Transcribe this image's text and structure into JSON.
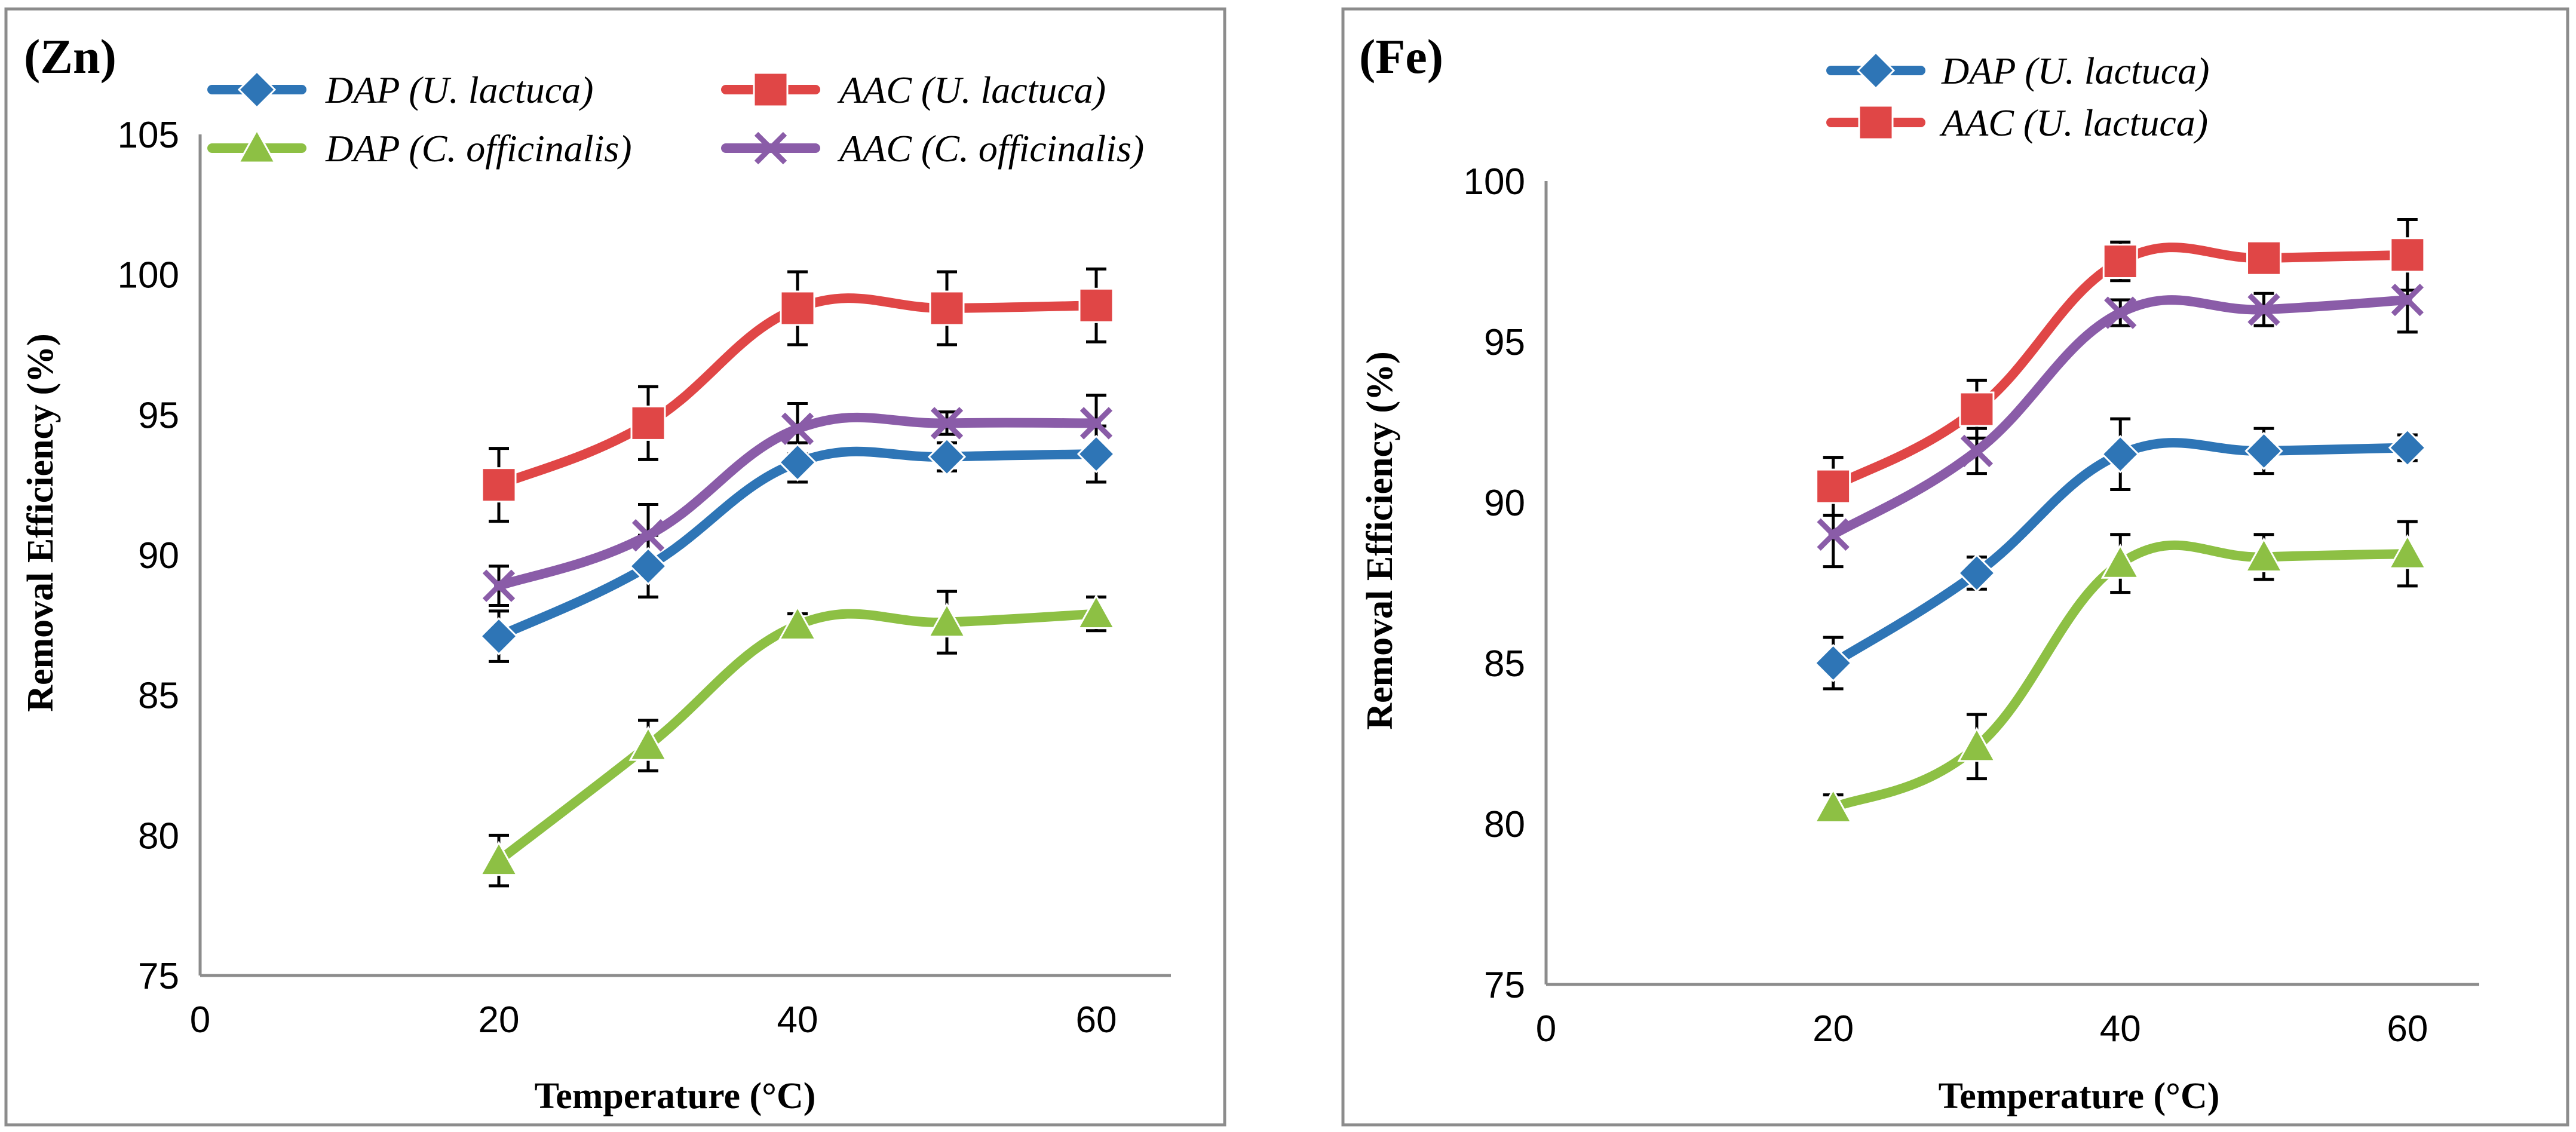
{
  "chart_data": [
    {
      "type": "line",
      "panel_label": "(Zn)",
      "xlabel": "Temperature (°C)",
      "ylabel": "Removal  Efficiency (%)",
      "xlim": [
        0,
        65
      ],
      "ylim": [
        75,
        105
      ],
      "xticks": [
        0,
        20,
        40,
        60
      ],
      "yticks": [
        75,
        80,
        85,
        90,
        95,
        100,
        105
      ],
      "grid": false,
      "legend_position": "top",
      "x": [
        20,
        30,
        40,
        50,
        60
      ],
      "series": [
        {
          "name": "DAP (U. lactuca)",
          "marker": "diamond",
          "color": "#2E75B6",
          "values": [
            87.1,
            89.6,
            93.3,
            93.5,
            93.6
          ],
          "errors": [
            0.9,
            1.1,
            0.7,
            0.5,
            1.0
          ]
        },
        {
          "name": "AAC (U. lactuca)",
          "marker": "square",
          "color": "#E04646",
          "values": [
            92.5,
            94.7,
            98.8,
            98.8,
            98.9
          ],
          "errors": [
            1.3,
            1.3,
            1.3,
            1.3,
            1.3
          ]
        },
        {
          "name": "DAP (C. officinalis)",
          "marker": "triangle",
          "color": "#8DC044",
          "values": [
            79.1,
            83.2,
            87.5,
            87.6,
            87.9
          ],
          "errors": [
            0.9,
            0.9,
            0.4,
            1.1,
            0.6
          ]
        },
        {
          "name": "AAC (C. officinalis)",
          "marker": "x",
          "color": "#8A5CA8",
          "values": [
            88.9,
            90.7,
            94.5,
            94.7,
            94.7
          ],
          "errors": [
            0.7,
            1.1,
            0.9,
            0.4,
            1.0
          ]
        }
      ]
    },
    {
      "type": "line",
      "panel_label": "(Fe)",
      "xlabel": "Temperature (°C)",
      "ylabel": "Removal  Efficiency (%)",
      "xlim": [
        0,
        65
      ],
      "ylim": [
        75,
        100
      ],
      "xticks": [
        0,
        20,
        40,
        60
      ],
      "yticks": [
        75,
        80,
        85,
        90,
        95,
        100
      ],
      "grid": false,
      "legend_position": "top",
      "x": [
        20,
        30,
        40,
        50,
        60
      ],
      "series": [
        {
          "name": "DAP (U. lactuca)",
          "marker": "diamond",
          "color": "#2E75B6",
          "values": [
            85.0,
            87.8,
            91.5,
            91.6,
            91.7
          ],
          "errors": [
            0.8,
            0.5,
            1.1,
            0.7,
            0.4
          ]
        },
        {
          "name": "AAC (U. lactuca)",
          "marker": "square",
          "color": "#E04646",
          "values": [
            90.5,
            92.9,
            97.5,
            97.6,
            97.7
          ],
          "errors": [
            0.9,
            0.9,
            0.6,
            0.4,
            1.1
          ]
        },
        {
          "name": "DAP (C. officinalis)",
          "marker": "triangle",
          "color": "#8DC044",
          "values": [
            80.5,
            82.4,
            88.1,
            88.3,
            88.4
          ],
          "errors": [
            0.4,
            1.0,
            0.9,
            0.7,
            1.0
          ]
        },
        {
          "name": "AAC (C. officinalis)",
          "marker": "x",
          "color": "#8A5CA8",
          "values": [
            89.0,
            91.6,
            95.9,
            96.0,
            96.3
          ],
          "errors": [
            1.0,
            0.7,
            0.4,
            0.5,
            1.0
          ]
        }
      ],
      "legend_entries": [
        "DAP (U. lactuca)",
        "AAC (U. lactuca)"
      ]
    }
  ]
}
